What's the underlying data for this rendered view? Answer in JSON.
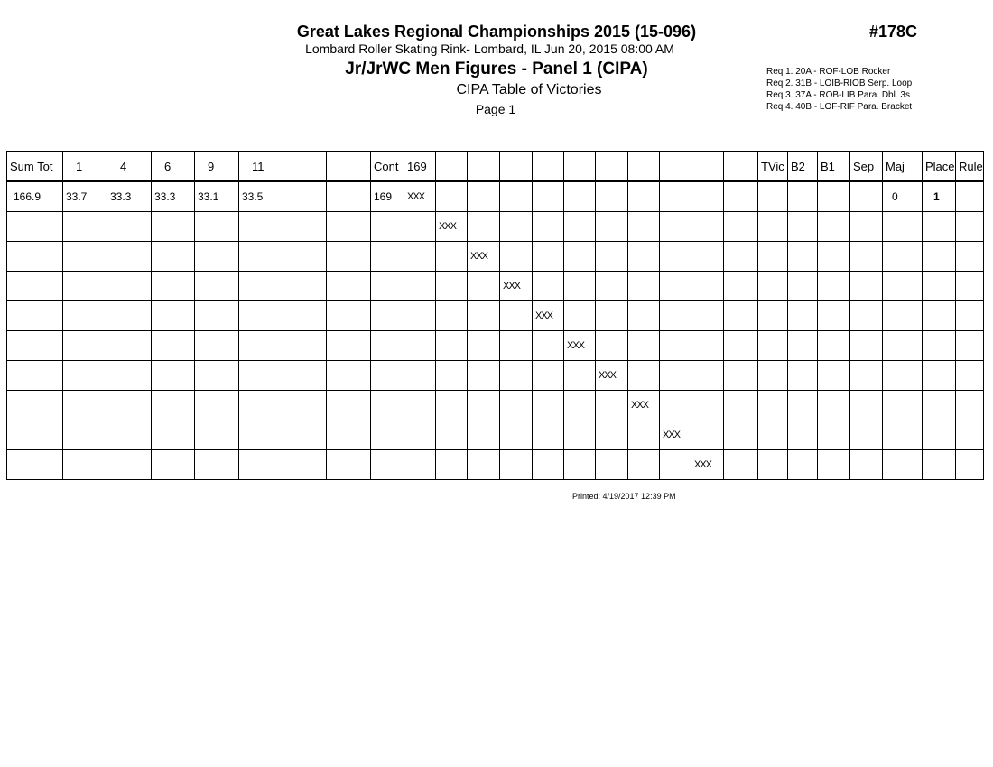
{
  "header": {
    "title": "Great Lakes Regional Championships 2015 (15-096)",
    "event_number": "#178C",
    "venue": "Lombard Roller Skating Rink- Lombard, IL  Jun 20, 2015  08:00 AM",
    "event": "Jr/JrWC Men Figures - Panel 1 (CIPA)",
    "subtitle": "CIPA Table of Victories",
    "page": "Page 1"
  },
  "requirements": [
    "Req  1.  20A - ROF-LOB Rocker",
    "Req  2.  31B - LOIB-RIOB Serp. Loop",
    "Req  3.  37A - ROB-LIB Para. Dbl. 3s",
    "Req  4.  40B - LOF-RIF Para. Bracket"
  ],
  "table": {
    "headers": [
      "Sum Tot",
      "1",
      "4",
      "6",
      "9",
      "11",
      "",
      "",
      "Cont",
      "169",
      "",
      "",
      "",
      "",
      "",
      "",
      "",
      "",
      "",
      "",
      "TVic",
      "B2",
      "B1",
      "Sep",
      "Maj",
      "Place",
      "Rule"
    ],
    "rows": [
      [
        "166.9",
        "33.7",
        "33.3",
        "33.3",
        "33.1",
        "33.5",
        "",
        "",
        "169",
        "XXX",
        "",
        "",
        "",
        "",
        "",
        "",
        "",
        "",
        "",
        "",
        "",
        "",
        "",
        "",
        "0",
        "1",
        ""
      ],
      [
        "",
        "",
        "",
        "",
        "",
        "",
        "",
        "",
        "",
        "",
        "XXX",
        "",
        "",
        "",
        "",
        "",
        "",
        "",
        "",
        "",
        "",
        "",
        "",
        "",
        "",
        "",
        ""
      ],
      [
        "",
        "",
        "",
        "",
        "",
        "",
        "",
        "",
        "",
        "",
        "",
        "XXX",
        "",
        "",
        "",
        "",
        "",
        "",
        "",
        "",
        "",
        "",
        "",
        "",
        "",
        "",
        ""
      ],
      [
        "",
        "",
        "",
        "",
        "",
        "",
        "",
        "",
        "",
        "",
        "",
        "",
        "XXX",
        "",
        "",
        "",
        "",
        "",
        "",
        "",
        "",
        "",
        "",
        "",
        "",
        "",
        ""
      ],
      [
        "",
        "",
        "",
        "",
        "",
        "",
        "",
        "",
        "",
        "",
        "",
        "",
        "",
        "XXX",
        "",
        "",
        "",
        "",
        "",
        "",
        "",
        "",
        "",
        "",
        "",
        "",
        ""
      ],
      [
        "",
        "",
        "",
        "",
        "",
        "",
        "",
        "",
        "",
        "",
        "",
        "",
        "",
        "",
        "XXX",
        "",
        "",
        "",
        "",
        "",
        "",
        "",
        "",
        "",
        "",
        "",
        ""
      ],
      [
        "",
        "",
        "",
        "",
        "",
        "",
        "",
        "",
        "",
        "",
        "",
        "",
        "",
        "",
        "",
        "XXX",
        "",
        "",
        "",
        "",
        "",
        "",
        "",
        "",
        "",
        "",
        ""
      ],
      [
        "",
        "",
        "",
        "",
        "",
        "",
        "",
        "",
        "",
        "",
        "",
        "",
        "",
        "",
        "",
        "",
        "XXX",
        "",
        "",
        "",
        "",
        "",
        "",
        "",
        "",
        "",
        ""
      ],
      [
        "",
        "",
        "",
        "",
        "",
        "",
        "",
        "",
        "",
        "",
        "",
        "",
        "",
        "",
        "",
        "",
        "",
        "XXX",
        "",
        "",
        "",
        "",
        "",
        "",
        "",
        "",
        ""
      ],
      [
        "",
        "",
        "",
        "",
        "",
        "",
        "",
        "",
        "",
        "",
        "",
        "",
        "",
        "",
        "",
        "",
        "",
        "",
        "XXX",
        "",
        "",
        "",
        "",
        "",
        "",
        "",
        ""
      ]
    ]
  },
  "footer": {
    "printed": "Printed:  4/19/2017  12:39 PM"
  }
}
